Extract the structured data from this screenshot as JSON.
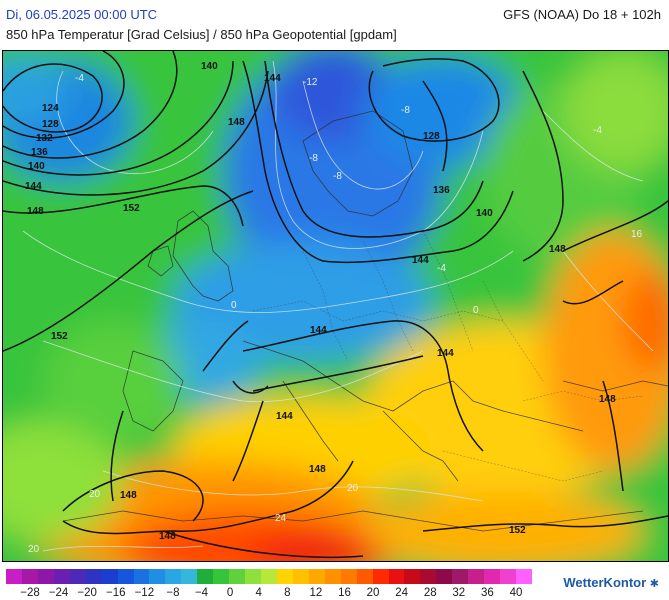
{
  "header": {
    "date": "Di, 06.05.2025 00:00 UTC",
    "model": "GFS (NOAA) Do 18 + 102h",
    "title": "850 hPa Temperatur [Grad Celsius] / 850 hPa Geopotential [gpdam]"
  },
  "geopotential_labels": [
    "140",
    "144",
    "124",
    "128",
    "132",
    "136",
    "140",
    "144",
    "148",
    "148",
    "152",
    "152",
    "128",
    "136",
    "140",
    "148",
    "144",
    "144",
    "144",
    "144",
    "148",
    "148",
    "148",
    "152",
    "148"
  ],
  "temperature_labels": [
    "-4",
    "-12",
    "-8",
    "-8",
    "-8",
    "-4",
    "0",
    "-4",
    "0",
    "20",
    "20",
    "24",
    "20",
    "16"
  ],
  "legend": {
    "labels": [
      "−28",
      "−24",
      "−20",
      "−16",
      "−12",
      "−8",
      "−4",
      "0",
      "4",
      "8",
      "12",
      "16",
      "20",
      "24",
      "28",
      "32",
      "36",
      "40"
    ],
    "colors": [
      "#c71ec7",
      "#a818a8",
      "#8e17a8",
      "#6a1fb0",
      "#4b2ab8",
      "#2e33c2",
      "#1a3fd0",
      "#1656dc",
      "#1a72e0",
      "#1f8ee3",
      "#2aa6e4",
      "#35b7dc",
      "#1fae3a",
      "#35c43a",
      "#5fd13a",
      "#8ee03a",
      "#b6e83a",
      "#ffd400",
      "#ffc000",
      "#ffa800",
      "#ff9000",
      "#ff7a00",
      "#ff5a00",
      "#ff2a00",
      "#e81010",
      "#c80a18",
      "#a80a30",
      "#8c0a4a",
      "#a0186a",
      "#c8208a",
      "#e028b0",
      "#f040d0",
      "#ff60ff"
    ]
  },
  "brand": {
    "name": "WetterKontor",
    "mark": "✱"
  }
}
